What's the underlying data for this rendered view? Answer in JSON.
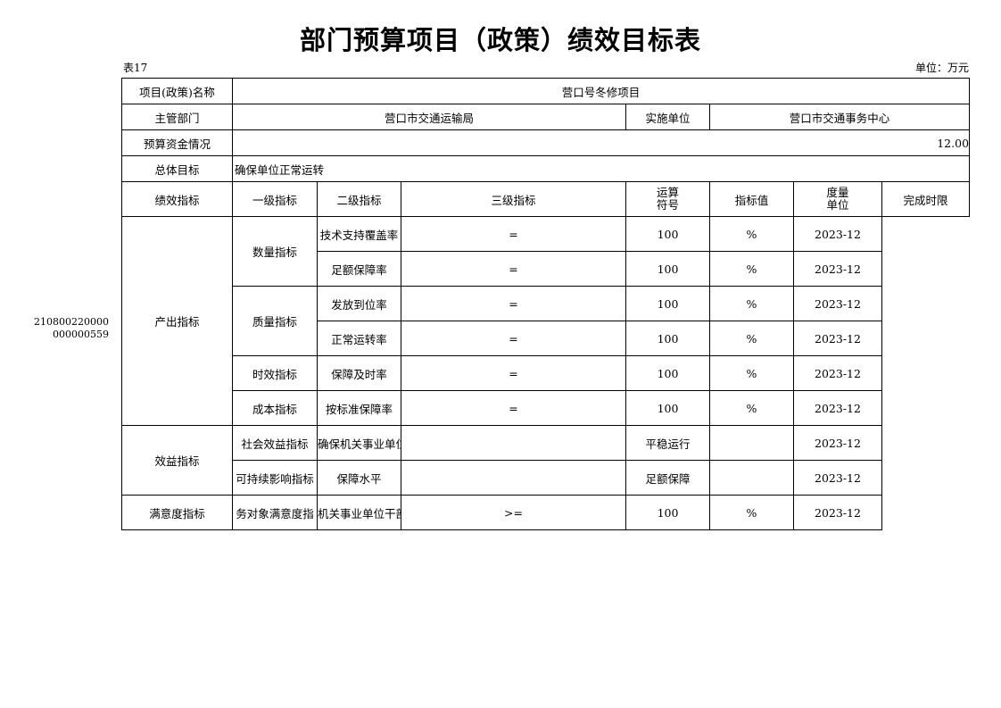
{
  "title": "部门预算项目（政策）绩效目标表",
  "table_no": "表17",
  "unit": "单位：万元",
  "side_code": [
    "210800220000",
    "000000559"
  ],
  "info": {
    "name_label": "项目(政策)名称",
    "name": "营口号冬修项目",
    "dept_label": "主管部门",
    "dept": "营口市交通运输局",
    "impl_label": "实施单位",
    "impl": "营口市交通事务中心",
    "budget_label": "预算资金情况",
    "budget": "12.00",
    "goal_label": "总体目标",
    "goal": "确保单位正常运转"
  },
  "perf_label": "绩效指标",
  "headers": [
    "一级指标",
    "二级指标",
    "三级指标",
    "运算\n符号",
    "指标值",
    "度量\n单位",
    "完成时限"
  ],
  "level1": [
    "产出指标",
    "效益指标",
    "满意度指标"
  ],
  "level2": [
    "数量指标",
    "质量指标",
    "时效指标",
    "成本指标",
    "社会效益指标",
    "可持续影响指标",
    "务对象满意度指"
  ],
  "rows": [
    {
      "name": "技术支持覆盖率",
      "op": "=",
      "value": "100",
      "unit": "%",
      "deadline": "2023-12"
    },
    {
      "name": "足额保障率",
      "op": "=",
      "value": "100",
      "unit": "%",
      "deadline": "2023-12"
    },
    {
      "name": "发放到位率",
      "op": "=",
      "value": "100",
      "unit": "%",
      "deadline": "2023-12"
    },
    {
      "name": "正常运转率",
      "op": "=",
      "value": "100",
      "unit": "%",
      "deadline": "2023-12"
    },
    {
      "name": "保障及时率",
      "op": "=",
      "value": "100",
      "unit": "%",
      "deadline": "2023-12"
    },
    {
      "name": "按标准保障率",
      "op": "=",
      "value": "100",
      "unit": "%",
      "deadline": "2023-12"
    },
    {
      "name": "确保机关事业单位平稳运行",
      "op": "",
      "value": "平稳运行",
      "unit": "",
      "deadline": "2023-12"
    },
    {
      "name": "保障水平",
      "op": "",
      "value": "足额保障",
      "unit": "",
      "deadline": "2023-12"
    },
    {
      "name": "机关事业单位干部群众满意度",
      "op": ">=",
      "value": "100",
      "unit": "%",
      "deadline": "2023-12"
    }
  ]
}
